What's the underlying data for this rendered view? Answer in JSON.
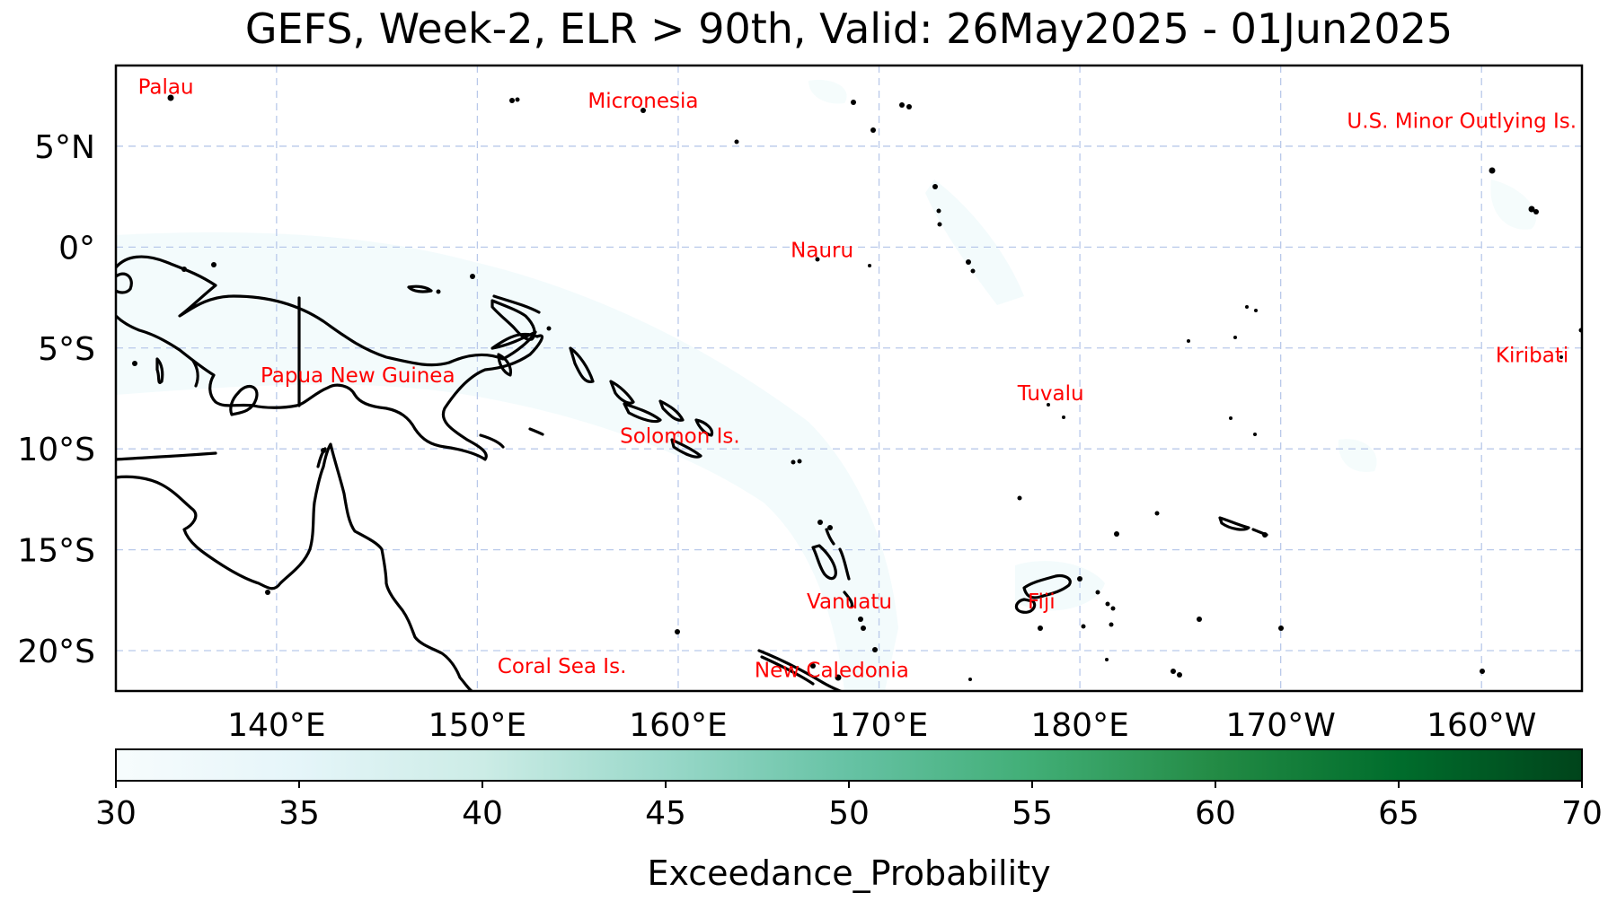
{
  "title": "GEFS, Week-2, ELR > 90th, Valid: 26May2025 - 01Jun2025",
  "map": {
    "lon_range": [
      132,
      205
    ],
    "lat_range": [
      -22,
      9
    ],
    "lat_ticks": [
      {
        "value": 5,
        "label": "5°N"
      },
      {
        "value": 0,
        "label": "0°"
      },
      {
        "value": -5,
        "label": "5°S"
      },
      {
        "value": -10,
        "label": "10°S"
      },
      {
        "value": -15,
        "label": "15°S"
      },
      {
        "value": -20,
        "label": "20°S"
      }
    ],
    "lon_ticks": [
      {
        "value": 140,
        "label": "140°E"
      },
      {
        "value": 150,
        "label": "150°E"
      },
      {
        "value": 160,
        "label": "160°E"
      },
      {
        "value": 170,
        "label": "170°E"
      },
      {
        "value": 180,
        "label": "180°E"
      },
      {
        "value": 190,
        "label": "170°W"
      },
      {
        "value": 200,
        "label": "160°W"
      }
    ],
    "grid": true,
    "countries": [
      {
        "name": "Palau",
        "lon": 133.1,
        "lat": 7.6
      },
      {
        "name": "Micronesia",
        "lon": 155.5,
        "lat": 6.9
      },
      {
        "name": "U.S. Minor Outlying Is.",
        "lon": 193.3,
        "lat": 5.9
      },
      {
        "name": "Nauru",
        "lon": 165.6,
        "lat": -0.5
      },
      {
        "name": "Kiribati",
        "lon": 200.7,
        "lat": -5.7
      },
      {
        "name": "Papua New Guinea",
        "lon": 139.2,
        "lat": -6.7
      },
      {
        "name": "Tuvalu",
        "lon": 176.9,
        "lat": -7.6
      },
      {
        "name": "Solomon Is.",
        "lon": 157.1,
        "lat": -9.7
      },
      {
        "name": "Vanuatu",
        "lon": 166.4,
        "lat": -17.9
      },
      {
        "name": "Fiji",
        "lon": 177.4,
        "lat": -17.9
      },
      {
        "name": "Coral Sea Is.",
        "lon": 151.0,
        "lat": -21.1
      },
      {
        "name": "New Caledonia",
        "lon": 163.8,
        "lat": -21.3
      }
    ]
  },
  "colorbar": {
    "label": "Exceedance_Probability",
    "min": 30,
    "max": 70,
    "ticks": [
      "30",
      "35",
      "40",
      "45",
      "50",
      "55",
      "60",
      "65",
      "70"
    ],
    "colormap": [
      "#f7fcfd",
      "#e5f5f9",
      "#ccece6",
      "#99d8c9",
      "#66c2a4",
      "#41ae76",
      "#238b45",
      "#006d2c",
      "#00441b"
    ],
    "orientation": "horizontal"
  }
}
